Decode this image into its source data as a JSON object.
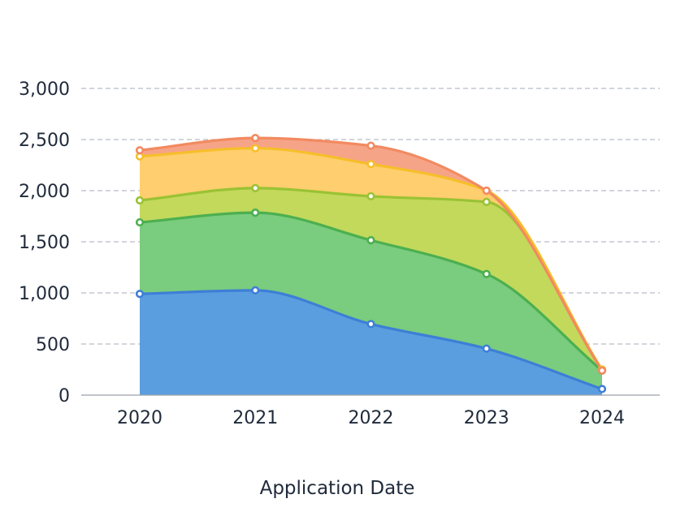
{
  "chart_data": {
    "type": "area",
    "stacked": true,
    "smooth": true,
    "categories": [
      "2020",
      "2021",
      "2022",
      "2023",
      "2024"
    ],
    "xlabel": "Application Date",
    "ylabel": "",
    "ylim": [
      0,
      3000
    ],
    "yticks": [
      0,
      500,
      1000,
      1500,
      2000,
      2500,
      3000
    ],
    "ytick_labels": [
      "0",
      "500",
      "1,000",
      "1,500",
      "2,000",
      "2,500",
      "3,000"
    ],
    "grid": true,
    "legend": "none",
    "series": [
      {
        "color": "#3d7fd6",
        "fill": "#5b9ee0",
        "values": [
          990,
          1025,
          695,
          455,
          60
        ]
      },
      {
        "color": "#4caf50",
        "fill": "#7acc7e",
        "values": [
          700,
          760,
          820,
          730,
          180
        ]
      },
      {
        "color": "#9ac234",
        "fill": "#c2d95c",
        "values": [
          215,
          240,
          430,
          705,
          10
        ]
      },
      {
        "color": "#f6bf2a",
        "fill": "#ffce6e",
        "values": [
          430,
          390,
          315,
          110,
          0
        ]
      },
      {
        "color": "#f28a60",
        "fill": "#f6a488",
        "values": [
          60,
          100,
          180,
          0,
          -10
        ]
      }
    ]
  }
}
